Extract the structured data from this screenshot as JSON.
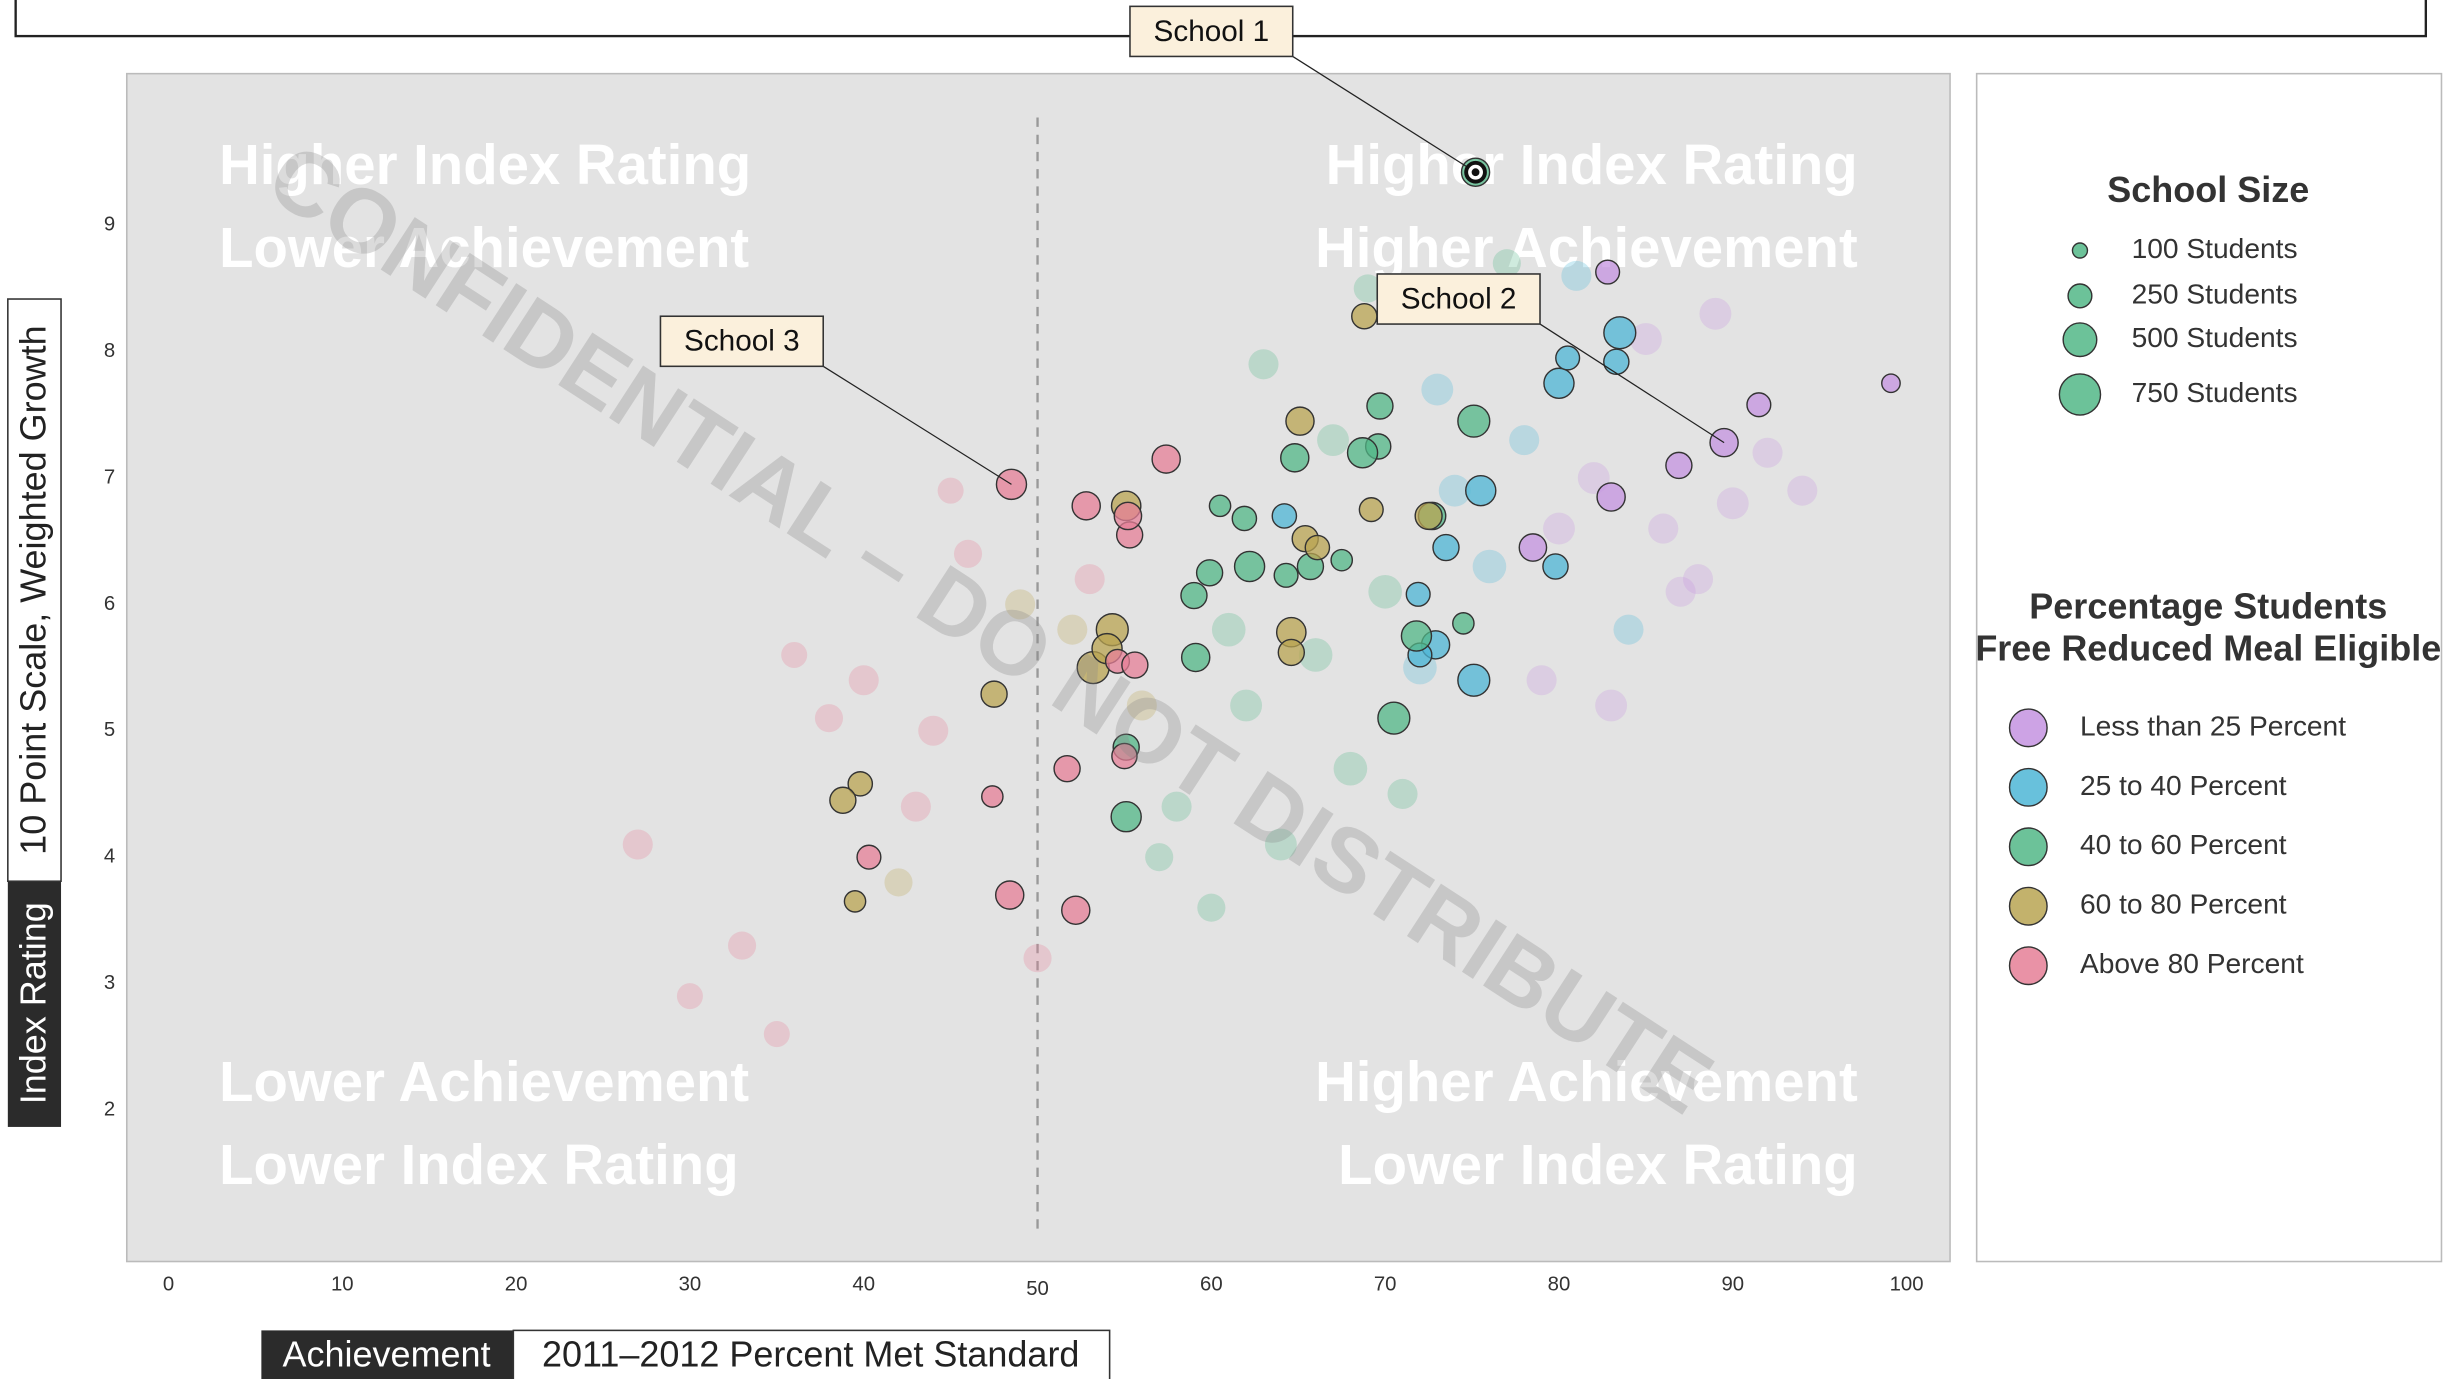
{
  "chart_data": {
    "type": "scatter",
    "watermark": "CONFIDENTIAL – DO NOT DISTRIBUTE",
    "x_label": {
      "tag": "Achievement",
      "text": "2011–2012 Percent Met Standard"
    },
    "y_label": {
      "tag": "Index Rating",
      "text": "10 Point Scale, Weighted Growth"
    },
    "quadrants": {
      "top_left": [
        "Higher Index Rating",
        "Lower Achievement"
      ],
      "top_right": [
        "Higher Index Rating",
        "Higher Achievement"
      ],
      "bottom_left": [
        "Lower Achievement",
        "Lower Index Rating"
      ],
      "bottom_right": [
        "Higher Achievement",
        "Lower Index Rating"
      ]
    },
    "xlim": [
      -2.4,
      102.5
    ],
    "ylim": [
      0.8,
      10.2
    ],
    "xticks": [
      0,
      10,
      20,
      30,
      40,
      50,
      60,
      70,
      80,
      90,
      100
    ],
    "yticks": [
      2,
      3,
      4,
      5,
      6,
      7,
      8,
      9
    ],
    "reference_x": 50,
    "grid": false,
    "size_legend": {
      "title": "School Size",
      "sizes": [
        100,
        250,
        500,
        750
      ],
      "labels": [
        "100 Students",
        "250 Students",
        "500 Students",
        "750 Students"
      ]
    },
    "color_legend_title": [
      "Percentage Students",
      "Free Reduced Meal Eligible"
    ],
    "series": [
      {
        "name": "Less than 25 Percent",
        "color": "#c493e0",
        "x": [
          89.5,
          86.9,
          83.0,
          82.8,
          91.5,
          99.1,
          78.5
        ],
        "values": [
          7.28,
          7.1,
          6.85,
          8.63,
          7.58,
          7.75,
          6.45
        ],
        "sizes": [
          350,
          300,
          350,
          250,
          250,
          150,
          330
        ]
      },
      {
        "name": "25 to 40 Percent",
        "color": "#4db6d6",
        "x": [
          64.2,
          73.5,
          71.9,
          72.9,
          75.1,
          79.8,
          80.0,
          80.5,
          83.3,
          83.5,
          75.5,
          72.0
        ],
        "values": [
          6.7,
          6.45,
          6.08,
          5.68,
          5.4,
          6.3,
          7.75,
          7.95,
          7.92,
          8.15,
          6.9,
          5.6
        ],
        "sizes": [
          260,
          300,
          250,
          350,
          450,
          280,
          400,
          250,
          280,
          450,
          400,
          250
        ]
      },
      {
        "name": "40 to 60 Percent",
        "color": "#52b787",
        "x": [
          75.2,
          59.1,
          55.1,
          55.1,
          59.0,
          59.9,
          60.5,
          61.9,
          62.2,
          64.3,
          64.8,
          65.7,
          67.5,
          69.6,
          69.7,
          68.7,
          75.1,
          72.7,
          74.5,
          71.8,
          70.5
        ],
        "values": [
          9.42,
          5.58,
          4.87,
          4.32,
          6.07,
          6.25,
          6.78,
          6.68,
          6.3,
          6.23,
          7.16,
          6.3,
          6.35,
          7.25,
          7.57,
          7.2,
          7.45,
          6.7,
          5.85,
          5.75,
          5.1
        ],
        "sizes": [
          350,
          350,
          300,
          400,
          300,
          300,
          200,
          260,
          400,
          250,
          350,
          300,
          200,
          280,
          300,
          400,
          450,
          330,
          200,
          400,
          450
        ]
      },
      {
        "name": "60 to 80 Percent",
        "color": "#b9a452",
        "x": [
          54.3,
          53.2,
          54.0,
          47.5,
          39.8,
          38.8,
          39.5,
          55.1,
          69.2,
          64.6,
          64.6,
          65.4,
          66.1,
          68.8,
          65.1,
          72.5
        ],
        "values": [
          5.8,
          5.5,
          5.65,
          5.29,
          4.58,
          4.45,
          3.65,
          6.78,
          6.75,
          5.78,
          5.62,
          6.52,
          6.45,
          8.28,
          7.45,
          6.7
        ],
        "sizes": [
          450,
          450,
          400,
          300,
          260,
          300,
          200,
          380,
          250,
          380,
          300,
          300,
          260,
          280,
          350,
          320
        ]
      },
      {
        "name": "Above 80 Percent",
        "color": "#e57f97",
        "x": [
          48.5,
          57.4,
          52.8,
          55.3,
          54.6,
          55.6,
          47.4,
          48.4,
          51.7,
          55.0,
          52.2,
          40.3,
          55.2
        ],
        "values": [
          6.95,
          7.15,
          6.78,
          6.55,
          5.55,
          5.52,
          4.48,
          3.7,
          4.7,
          4.8,
          3.58,
          4.0,
          6.7
        ],
        "sizes": [
          400,
          350,
          350,
          300,
          250,
          300,
          200,
          350,
          300,
          280,
          350,
          250,
          330
        ]
      }
    ],
    "background": {
      "x": [
        27,
        33,
        36,
        30,
        44,
        42,
        46,
        40,
        35,
        58,
        62,
        66,
        70,
        74,
        78,
        82,
        86,
        90,
        94,
        60,
        64,
        68,
        72,
        76,
        80,
        84,
        88,
        45,
        50,
        56,
        61,
        67,
        71,
        77,
        81,
        85,
        89,
        92,
        52,
        57,
        63,
        69,
        73,
        79,
        83,
        87,
        38,
        43,
        49,
        53
      ],
      "values": [
        4.1,
        3.3,
        5.6,
        2.9,
        5.0,
        3.8,
        6.4,
        5.4,
        2.6,
        4.4,
        5.2,
        5.6,
        6.1,
        6.9,
        7.3,
        7.0,
        6.6,
        6.8,
        6.9,
        3.6,
        4.1,
        4.7,
        5.5,
        6.3,
        6.6,
        5.8,
        6.2,
        6.9,
        3.2,
        5.2,
        5.8,
        7.3,
        4.5,
        8.7,
        8.6,
        8.1,
        8.3,
        7.2,
        5.8,
        4.0,
        7.9,
        8.5,
        7.7,
        5.4,
        5.2,
        6.1,
        5.1,
        4.4,
        6.0,
        6.2
      ],
      "sizes": [
        400,
        350,
        300,
        300,
        400,
        350,
        350,
        400,
        300,
        400,
        450,
        500,
        500,
        450,
        400,
        450,
        400,
        450,
        400,
        350,
        450,
        500,
        500,
        500,
        450,
        400,
        400,
        300,
        350,
        400,
        500,
        450,
        400,
        350,
        400,
        450,
        450,
        400,
        400,
        350,
        400,
        350,
        450,
        400,
        450,
        400,
        350,
        400,
        400,
        400
      ],
      "colors": [
        "#e57f97",
        "#e57f97",
        "#e57f97",
        "#e57f97",
        "#e57f97",
        "#b9a452",
        "#e57f97",
        "#e57f97",
        "#e57f97",
        "#52b787",
        "#52b787",
        "#52b787",
        "#52b787",
        "#4db6d6",
        "#4db6d6",
        "#c493e0",
        "#c493e0",
        "#c493e0",
        "#c493e0",
        "#52b787",
        "#52b787",
        "#52b787",
        "#4db6d6",
        "#4db6d6",
        "#c493e0",
        "#4db6d6",
        "#c493e0",
        "#e57f97",
        "#e57f97",
        "#b9a452",
        "#52b787",
        "#52b787",
        "#52b787",
        "#52b787",
        "#4db6d6",
        "#c493e0",
        "#c493e0",
        "#c493e0",
        "#b9a452",
        "#52b787",
        "#52b787",
        "#52b787",
        "#4db6d6",
        "#c493e0",
        "#c493e0",
        "#c493e0",
        "#e57f97",
        "#e57f97",
        "#b9a452",
        "#e57f97"
      ]
    },
    "annotations": [
      {
        "label": "School 1",
        "x": 75.2,
        "y": 9.42
      },
      {
        "label": "School 2",
        "x": 89.5,
        "y": 7.28
      },
      {
        "label": "School 3",
        "x": 48.5,
        "y": 6.95
      }
    ]
  }
}
